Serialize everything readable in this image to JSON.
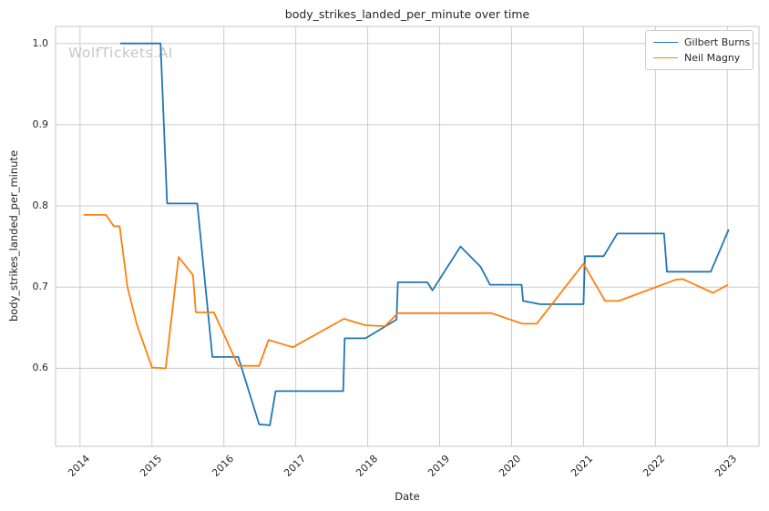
{
  "title": "body_strikes_landed_per_minute over time",
  "watermark": "WolfTickets.AI",
  "axes": {
    "x_label": "Date",
    "y_label": "body_strikes_landed_per_minute"
  },
  "colors": {
    "series_blue": "#1f77b4",
    "series_orange": "#ff7f0e",
    "grid": "#cccccc",
    "spine": "#c4c4c4",
    "text": "#262626",
    "watermark": "#c6c6c6",
    "background": "#ffffff"
  },
  "legend": {
    "position": "upper right",
    "entries": [
      {
        "label": "Gilbert Burns",
        "color": "#1f77b4"
      },
      {
        "label": "Neil Magny",
        "color": "#ff7f0e"
      }
    ]
  },
  "chart_data": {
    "type": "line",
    "title": "body_strikes_landed_per_minute over time",
    "xlabel": "Date",
    "ylabel": "body_strikes_landed_per_minute",
    "grid": true,
    "legend_position": "upper right",
    "xlim": [
      2013.66,
      2023.44
    ],
    "ylim": [
      0.504,
      1.021
    ],
    "xticks": [
      2014,
      2015,
      2016,
      2017,
      2018,
      2019,
      2020,
      2021,
      2022,
      2023
    ],
    "yticks": [
      0.6,
      0.7,
      0.8,
      0.9,
      1.0
    ],
    "series": [
      {
        "name": "Gilbert Burns",
        "color": "#1f77b4",
        "points": [
          [
            2014.56,
            1.0
          ],
          [
            2015.12,
            1.0
          ],
          [
            2015.21,
            0.803
          ],
          [
            2015.63,
            0.803
          ],
          [
            2015.84,
            0.614
          ],
          [
            2016.2,
            0.614
          ],
          [
            2016.49,
            0.531
          ],
          [
            2016.64,
            0.53
          ],
          [
            2016.72,
            0.572
          ],
          [
            2017.66,
            0.572
          ],
          [
            2017.68,
            0.637
          ],
          [
            2017.97,
            0.637
          ],
          [
            2018.4,
            0.66
          ],
          [
            2018.42,
            0.706
          ],
          [
            2018.83,
            0.706
          ],
          [
            2018.9,
            0.696
          ],
          [
            2019.29,
            0.75
          ],
          [
            2019.57,
            0.725
          ],
          [
            2019.7,
            0.703
          ],
          [
            2020.14,
            0.703
          ],
          [
            2020.16,
            0.683
          ],
          [
            2020.4,
            0.679
          ],
          [
            2021.0,
            0.679
          ],
          [
            2021.02,
            0.738
          ],
          [
            2021.28,
            0.738
          ],
          [
            2021.47,
            0.766
          ],
          [
            2022.12,
            0.766
          ],
          [
            2022.16,
            0.719
          ],
          [
            2022.77,
            0.719
          ],
          [
            2023.02,
            0.771
          ]
        ]
      },
      {
        "name": "Neil Magny",
        "color": "#ff7f0e",
        "points": [
          [
            2014.05,
            0.789
          ],
          [
            2014.36,
            0.789
          ],
          [
            2014.47,
            0.775
          ],
          [
            2014.55,
            0.775
          ],
          [
            2014.66,
            0.7
          ],
          [
            2014.79,
            0.654
          ],
          [
            2015.0,
            0.601
          ],
          [
            2015.19,
            0.6
          ],
          [
            2015.37,
            0.737
          ],
          [
            2015.57,
            0.715
          ],
          [
            2015.61,
            0.669
          ],
          [
            2015.86,
            0.669
          ],
          [
            2016.2,
            0.603
          ],
          [
            2016.49,
            0.603
          ],
          [
            2016.62,
            0.635
          ],
          [
            2016.96,
            0.626
          ],
          [
            2017.67,
            0.661
          ],
          [
            2017.97,
            0.653
          ],
          [
            2018.24,
            0.652
          ],
          [
            2018.42,
            0.668
          ],
          [
            2019.72,
            0.668
          ],
          [
            2020.15,
            0.655
          ],
          [
            2020.35,
            0.655
          ],
          [
            2021.0,
            0.729
          ],
          [
            2021.3,
            0.683
          ],
          [
            2021.49,
            0.683
          ],
          [
            2022.28,
            0.709
          ],
          [
            2022.38,
            0.71
          ],
          [
            2022.8,
            0.693
          ],
          [
            2023.01,
            0.703
          ]
        ]
      }
    ]
  }
}
